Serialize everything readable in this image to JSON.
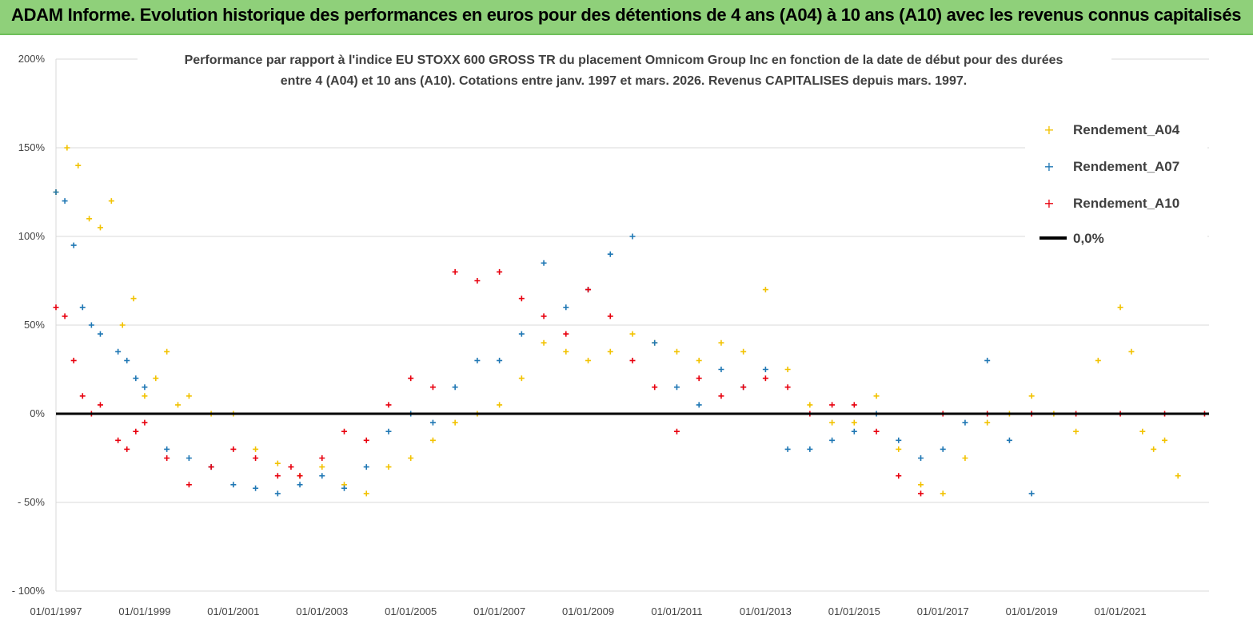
{
  "banner": {
    "title": "ADAM Informe. Evolution historique des performances en euros pour des détentions de 4 ans (A04) à 10 ans (A10) avec les revenus connus capitalisés"
  },
  "colors": {
    "banner_bg": "#8fd07a",
    "A04": "#f2c200",
    "A07": "#1f77b4",
    "A10": "#e8000e",
    "zero_line": "#000000"
  },
  "chart_data": {
    "type": "scatter",
    "title_line1": "Performance par rapport à l'indice EU STOXX 600 GROSS TR  du placement Omnicom Group Inc en fonction de la date de début pour des durées",
    "title_line2": "entre 4 (A04) et 10 ans (A10). Cotations entre janv. 1997 et mars. 2026. Revenus CAPITALISES depuis mars. 1997.",
    "xlabel": "",
    "ylabel": "",
    "x_range": [
      "01/01/1997",
      "01/01/2023"
    ],
    "ylim": [
      -100,
      200
    ],
    "y_ticks": [
      "200%",
      "150%",
      "100%",
      "50%",
      "0%",
      "- 50%",
      "- 100%"
    ],
    "y_tick_values": [
      200,
      150,
      100,
      50,
      0,
      -50,
      -100
    ],
    "x_ticks": [
      "01/01/1997",
      "01/01/1999",
      "01/01/2001",
      "01/01/2003",
      "01/01/2005",
      "01/01/2007",
      "01/01/2009",
      "01/01/2011",
      "01/01/2013",
      "01/01/2015",
      "01/01/2017",
      "01/01/2019",
      "01/01/2021"
    ],
    "x_tick_years": [
      1997,
      1999,
      2001,
      2003,
      2005,
      2007,
      2009,
      2011,
      2013,
      2015,
      2017,
      2019,
      2021
    ],
    "legend_position": "top-right",
    "series": [
      {
        "name": "Rendement_A04",
        "x": [
          1997.0,
          1997.25,
          1997.5,
          1997.75,
          1998.0,
          1998.25,
          1998.5,
          1998.75,
          1999.0,
          1999.25,
          1999.5,
          1999.75,
          2000.0,
          2000.5,
          2001.0,
          2001.5,
          2002.0,
          2002.5,
          2003.0,
          2003.5,
          2004.0,
          2004.5,
          2005.0,
          2005.5,
          2006.0,
          2006.5,
          2007.0,
          2007.5,
          2008.0,
          2008.5,
          2009.0,
          2009.5,
          2010.0,
          2010.5,
          2011.0,
          2011.5,
          2012.0,
          2012.5,
          2013.0,
          2013.5,
          2014.0,
          2014.5,
          2015.0,
          2015.5,
          2016.0,
          2016.5,
          2017.0,
          2017.5,
          2018.0,
          2018.5,
          2019.0,
          2019.5,
          2020.0,
          2020.5,
          2021.0,
          2021.25,
          2021.5,
          2021.75,
          2022.0,
          2022.3
        ],
        "y": [
          125,
          150,
          140,
          110,
          105,
          120,
          50,
          65,
          10,
          20,
          35,
          5,
          10,
          0,
          0,
          -20,
          -28,
          -35,
          -30,
          -40,
          -45,
          -30,
          -25,
          -15,
          -5,
          0,
          5,
          20,
          40,
          35,
          30,
          35,
          45,
          40,
          35,
          30,
          40,
          35,
          70,
          25,
          5,
          -5,
          -5,
          10,
          -20,
          -40,
          -45,
          -25,
          -5,
          0,
          10,
          0,
          -10,
          30,
          60,
          35,
          -10,
          -20,
          -15,
          -35
        ]
      },
      {
        "name": "Rendement_A07",
        "x": [
          1997.0,
          1997.2,
          1997.4,
          1997.6,
          1997.8,
          1998.0,
          1998.4,
          1998.6,
          1998.8,
          1999.0,
          1999.5,
          2000.0,
          2000.5,
          2001.0,
          2001.5,
          2002.0,
          2002.5,
          2003.0,
          2003.5,
          2004.0,
          2004.5,
          2005.0,
          2005.5,
          2006.0,
          2006.5,
          2007.0,
          2007.5,
          2008.0,
          2008.5,
          2009.0,
          2009.5,
          2010.0,
          2010.5,
          2011.0,
          2011.5,
          2012.0,
          2012.5,
          2013.0,
          2013.5,
          2014.0,
          2014.5,
          2015.0,
          2015.5,
          2016.0,
          2016.5,
          2017.0,
          2017.5,
          2018.0,
          2018.5,
          2019.0
        ],
        "y": [
          125,
          120,
          95,
          60,
          50,
          45,
          35,
          30,
          20,
          15,
          -20,
          -25,
          -30,
          -40,
          -42,
          -45,
          -40,
          -35,
          -42,
          -30,
          -10,
          0,
          -5,
          15,
          30,
          30,
          45,
          85,
          60,
          70,
          90,
          100,
          40,
          15,
          5,
          25,
          15,
          25,
          -20,
          -20,
          -15,
          -10,
          0,
          -15,
          -25,
          -20,
          -5,
          30,
          -15,
          -45
        ]
      },
      {
        "name": "Rendement_A10",
        "x": [
          1997.0,
          1997.2,
          1997.4,
          1997.6,
          1997.8,
          1998.0,
          1998.4,
          1998.6,
          1998.8,
          1999.0,
          1999.5,
          2000.0,
          2000.5,
          2001.0,
          2001.5,
          2002.0,
          2002.3,
          2002.5,
          2003.0,
          2003.5,
          2004.0,
          2004.5,
          2005.0,
          2005.5,
          2006.0,
          2006.5,
          2007.0,
          2007.5,
          2008.0,
          2008.5,
          2009.0,
          2009.5,
          2010.0,
          2010.5,
          2011.0,
          2011.5,
          2012.0,
          2012.5,
          2013.0,
          2013.5,
          2014.0,
          2014.5,
          2015.0,
          2015.5,
          2016.0,
          2016.5,
          2017.0,
          2018.0,
          2019.0,
          2020.0,
          2021.0,
          2022.0,
          2022.9
        ],
        "y": [
          60,
          55,
          30,
          10,
          0,
          5,
          -15,
          -20,
          -10,
          -5,
          -25,
          -40,
          -30,
          -20,
          -25,
          -35,
          -30,
          -35,
          -25,
          -10,
          -15,
          5,
          20,
          15,
          80,
          75,
          80,
          65,
          55,
          45,
          70,
          55,
          30,
          15,
          -10,
          20,
          10,
          15,
          20,
          15,
          0,
          5,
          5,
          -10,
          -35,
          -45,
          0,
          0,
          0,
          0,
          0,
          0,
          0
        ]
      }
    ],
    "reference_line": {
      "name": "0,0%",
      "y": 0
    }
  }
}
